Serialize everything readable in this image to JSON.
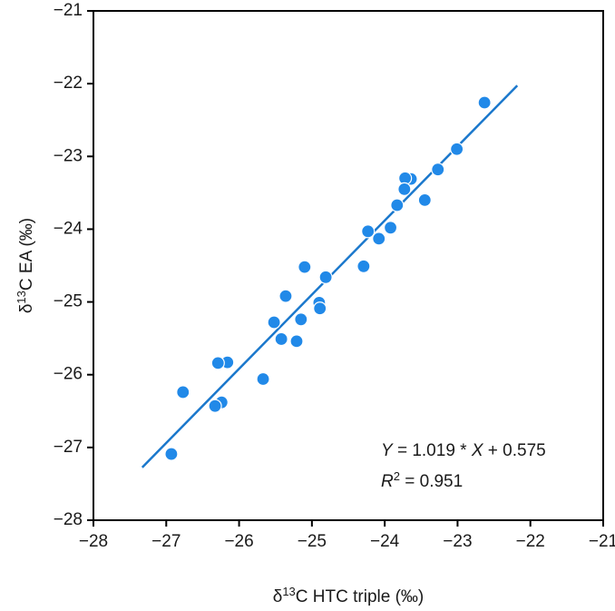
{
  "chart_data": {
    "type": "scatter",
    "xlabel": [
      {
        "text": "δ"
      },
      {
        "text": "13",
        "sup": true
      },
      {
        "text": "C HTC triple (‰)"
      }
    ],
    "ylabel": [
      {
        "text": "δ"
      },
      {
        "text": "13",
        "sup": true
      },
      {
        "text": "C EA (‰)"
      }
    ],
    "xlim": [
      -28,
      -21
    ],
    "ylim": [
      -28,
      -21
    ],
    "xticks": [
      {
        "value": -28,
        "label": "−28"
      },
      {
        "value": -27,
        "label": "−27"
      },
      {
        "value": -26,
        "label": "−26"
      },
      {
        "value": -25,
        "label": "−25"
      },
      {
        "value": -24,
        "label": "−24"
      },
      {
        "value": -23,
        "label": "−23"
      },
      {
        "value": -22,
        "label": "−22"
      },
      {
        "value": -21,
        "label": "−21"
      }
    ],
    "yticks": [
      {
        "value": -28,
        "label": "−28"
      },
      {
        "value": -27,
        "label": "−27"
      },
      {
        "value": -26,
        "label": "−26"
      },
      {
        "value": -25,
        "label": "−25"
      },
      {
        "value": -24,
        "label": "−24"
      },
      {
        "value": -23,
        "label": "−23"
      },
      {
        "value": -22,
        "label": "−22"
      },
      {
        "value": -21,
        "label": "−21"
      }
    ],
    "grid": false,
    "color": "#2189e8",
    "x": [
      -22.63,
      -23.01,
      -23.27,
      -23.64,
      -23.72,
      -23.73,
      -23.45,
      -23.83,
      -23.92,
      -24.08,
      -24.23,
      -24.29,
      -24.81,
      -25.1,
      -24.9,
      -24.89,
      -25.36,
      -25.52,
      -25.15,
      -25.21,
      -25.42,
      -26.16,
      -26.29,
      -25.67,
      -26.77,
      -26.24,
      -26.33,
      -26.93
    ],
    "values": [
      -22.26,
      -22.9,
      -23.18,
      -23.31,
      -23.3,
      -23.45,
      -23.6,
      -23.67,
      -23.98,
      -24.13,
      -24.03,
      -24.51,
      -24.66,
      -24.52,
      -25.01,
      -25.09,
      -24.92,
      -25.28,
      -25.24,
      -25.54,
      -25.51,
      -25.83,
      -25.84,
      -26.06,
      -26.24,
      -26.38,
      -26.43,
      -27.09
    ],
    "fit": {
      "slope": 1.019,
      "intercept": 0.575,
      "x_range": [
        -27.33,
        -22.18
      ],
      "color": "#1b78cc"
    },
    "annotations": [
      [
        {
          "text": "Y",
          "italic": true
        },
        {
          "text": " = 1.019 * "
        },
        {
          "text": "X",
          "italic": true
        },
        {
          "text": " + 0.575"
        }
      ],
      [
        {
          "text": "R",
          "italic": true
        },
        {
          "text": "2",
          "sup": true
        },
        {
          "text": " = 0.951"
        }
      ]
    ]
  }
}
